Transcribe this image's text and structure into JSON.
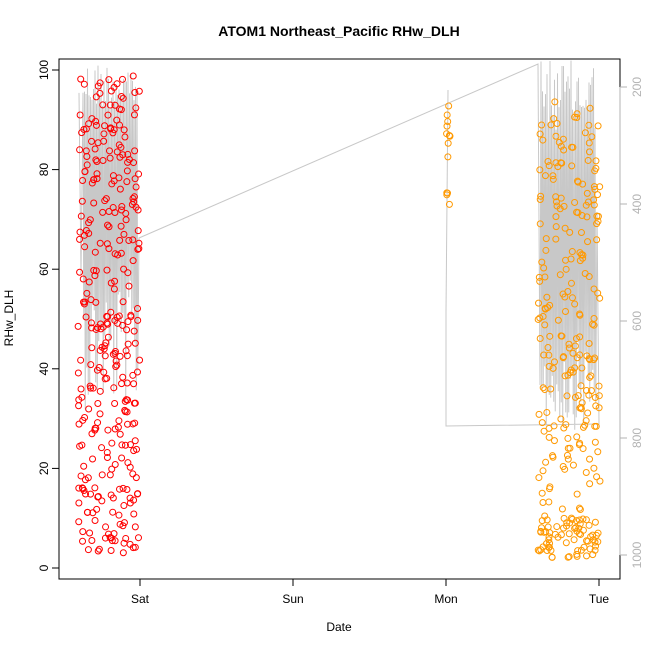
{
  "chart_data": {
    "type": "scatter",
    "title": "ATOM1 Northeast_Pacific RHw_DLH",
    "xlabel": "Date",
    "ylabel": "RHw_DLH",
    "x_ticks": [
      "Sat",
      "Sun",
      "Mon",
      "Tue"
    ],
    "y_ticks": [
      "0",
      "20",
      "40",
      "60",
      "80",
      "100"
    ],
    "ylim": [
      0,
      100
    ],
    "y2_ticks": [
      "200",
      "400",
      "600",
      "800",
      "1000"
    ],
    "y2_label": "",
    "grid": false,
    "legend": "none",
    "colors": {
      "series1": "#ff0000",
      "series2": "#ff9900",
      "pressure": "#c8c8c8"
    }
  }
}
